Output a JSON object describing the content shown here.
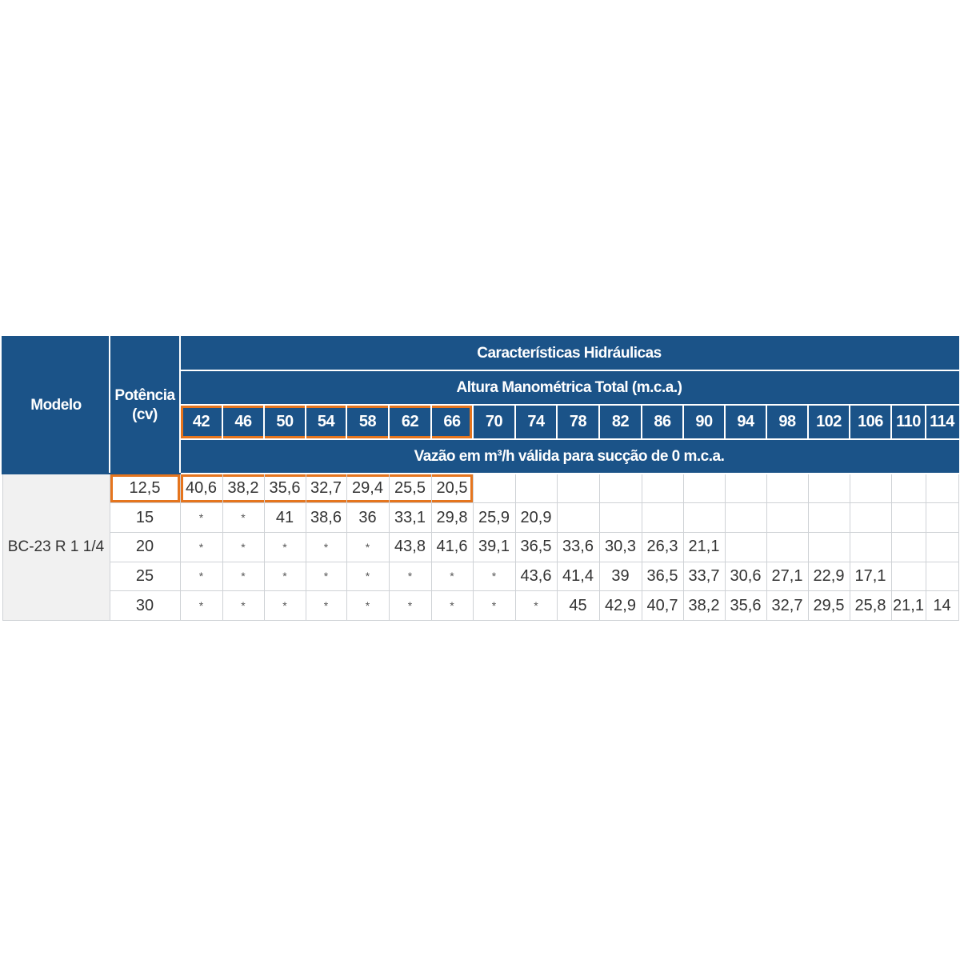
{
  "colors": {
    "header_blue": "#1b5388",
    "highlight_orange": "#e5751e",
    "model_cell_gray": "#f1f1f1",
    "grid_line": "#cfd2d6"
  },
  "table": {
    "modelo_label": "Modelo",
    "potencia_label": "Potência (cv)",
    "group_title": "Características Hidráulicas",
    "height_title": "Altura Manométrica Total (m.c.a.)",
    "flow_title": "Vazão em m³/h válida para sucção de 0 m.c.a.",
    "heights": [
      "42",
      "46",
      "50",
      "54",
      "58",
      "62",
      "66",
      "70",
      "74",
      "78",
      "82",
      "86",
      "90",
      "94",
      "98",
      "102",
      "106",
      "110",
      "114"
    ],
    "highlighted_heights": [
      "42",
      "46",
      "50",
      "54",
      "58",
      "62",
      "66"
    ],
    "model_name": "BC-23 R 1 1/4",
    "rows": [
      {
        "power": "12,5",
        "highlighted": true,
        "values": [
          "40,6",
          "38,2",
          "35,6",
          "32,7",
          "29,4",
          "25,5",
          "20,5",
          "",
          "",
          "",
          "",
          "",
          "",
          "",
          "",
          "",
          "",
          "",
          ""
        ]
      },
      {
        "power": "15",
        "highlighted": false,
        "values": [
          "*",
          "*",
          "41",
          "38,6",
          "36",
          "33,1",
          "29,8",
          "25,9",
          "20,9",
          "",
          "",
          "",
          "",
          "",
          "",
          "",
          "",
          "",
          ""
        ]
      },
      {
        "power": "20",
        "highlighted": false,
        "values": [
          "*",
          "*",
          "*",
          "*",
          "*",
          "43,8",
          "41,6",
          "39,1",
          "36,5",
          "33,6",
          "30,3",
          "26,3",
          "21,1",
          "",
          "",
          "",
          "",
          "",
          ""
        ]
      },
      {
        "power": "25",
        "highlighted": false,
        "values": [
          "*",
          "*",
          "*",
          "*",
          "*",
          "*",
          "*",
          "*",
          "43,6",
          "41,4",
          "39",
          "36,5",
          "33,7",
          "30,6",
          "27,1",
          "22,9",
          "17,1",
          "",
          ""
        ]
      },
      {
        "power": "30",
        "highlighted": false,
        "values": [
          "*",
          "*",
          "*",
          "*",
          "*",
          "*",
          "*",
          "*",
          "*",
          "45",
          "42,9",
          "40,7",
          "38,2",
          "35,6",
          "32,7",
          "29,5",
          "25,8",
          "21,1",
          "14"
        ]
      }
    ]
  }
}
